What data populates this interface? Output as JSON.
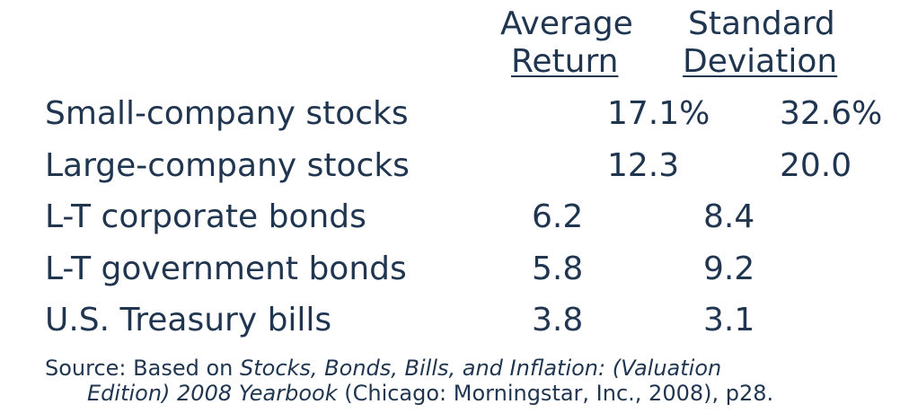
{
  "headers": {
    "avg_line1": "Average",
    "avg_line2": "Return",
    "std_line1": "Standard",
    "std_line2": "Deviation"
  },
  "rows": [
    {
      "label": "Small-company stocks",
      "avg": "17.1%",
      "std": "32.6%"
    },
    {
      "label": "Large-company stocks",
      "avg": "12.3",
      "std": "20.0"
    },
    {
      "label": "L-T corporate bonds",
      "avg": "6.2",
      "std": "8.4"
    },
    {
      "label": "L-T government bonds",
      "avg": "5.8",
      "std": "9.2"
    },
    {
      "label": "U.S. Treasury bills",
      "avg": "3.8",
      "std": "3.1"
    }
  ],
  "source": {
    "prefix": "Source:  Based on ",
    "title_part1": "Stocks, Bonds, Bills, and Inflation:  (Valuation",
    "title_part2": "Edition) 2008 Yearbook",
    "suffix": " (Chicago:  Morningstar, Inc., 2008), p28."
  }
}
